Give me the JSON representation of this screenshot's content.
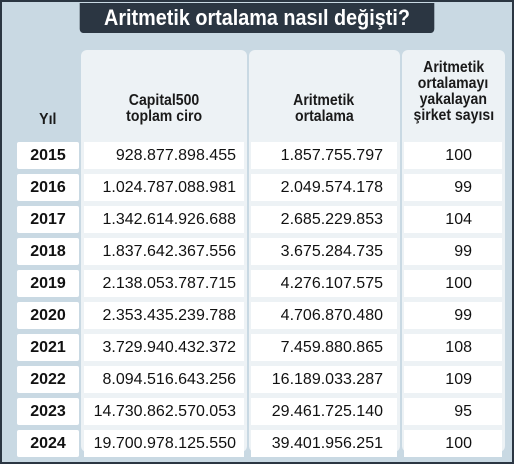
{
  "title": "Aritmetik ortalama nasıl değişti?",
  "colors": {
    "frame": "#2b3642",
    "panel_background": "#c9d9e3",
    "column_background": "#edf2f5",
    "cell_background": "#ffffff"
  },
  "headers": {
    "year": "Yıl",
    "ciro_line1": "Capital500",
    "ciro_line2": "toplam ciro",
    "ort_line1": "Aritmetik",
    "ort_line2": "ortalama",
    "cnt_line1": "Aritmetik",
    "cnt_line2": "ortalamayı",
    "cnt_line3": "yakalayan",
    "cnt_line4": "şirket sayısı"
  },
  "chart_data": {
    "type": "table",
    "title": "Aritmetik ortalama nasıl değişti?",
    "columns": [
      "Yıl",
      "Capital500 toplam ciro",
      "Aritmetik ortalama",
      "Aritmetik ortalamayı yakalayan şirket sayısı"
    ],
    "rows": [
      {
        "year": "2015",
        "ciro": "928.877.898.455",
        "ortalama": "1.857.755.797",
        "sirket": "100"
      },
      {
        "year": "2016",
        "ciro": "1.024.787.088.981",
        "ortalama": "2.049.574.178",
        "sirket": "99"
      },
      {
        "year": "2017",
        "ciro": "1.342.614.926.688",
        "ortalama": "2.685.229.853",
        "sirket": "104"
      },
      {
        "year": "2018",
        "ciro": "1.837.642.367.556",
        "ortalama": "3.675.284.735",
        "sirket": "99"
      },
      {
        "year": "2019",
        "ciro": "2.138.053.787.715",
        "ortalama": "4.276.107.575",
        "sirket": "100"
      },
      {
        "year": "2020",
        "ciro": "2.353.435.239.788",
        "ortalama": "4.706.870.480",
        "sirket": "99"
      },
      {
        "year": "2021",
        "ciro": "3.729.940.432.372",
        "ortalama": "7.459.880.865",
        "sirket": "108"
      },
      {
        "year": "2022",
        "ciro": "8.094.516.643.256",
        "ortalama": "16.189.033.287",
        "sirket": "109"
      },
      {
        "year": "2023",
        "ciro": "14.730.862.570.053",
        "ortalama": "29.461.725.140",
        "sirket": "95"
      },
      {
        "year": "2024",
        "ciro": "19.700.978.125.550",
        "ortalama": "39.401.956.251",
        "sirket": "100"
      }
    ]
  }
}
